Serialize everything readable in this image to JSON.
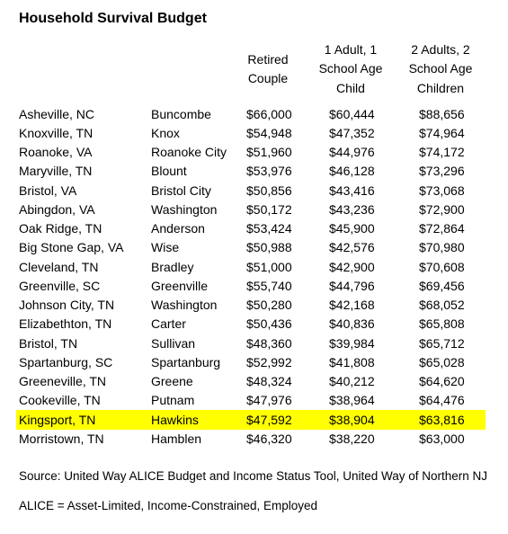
{
  "header": {
    "title": "Household Survival Budget"
  },
  "table": {
    "columns": [
      "",
      "",
      "Retired Couple",
      "1 Adult, 1 School Age Child",
      "2 Adults, 2 School Age Children"
    ],
    "rows": [
      [
        "Asheville, NC",
        "Buncombe",
        "$66,000",
        "$60,444",
        "$88,656"
      ],
      [
        "Knoxville, TN",
        "Knox",
        "$54,948",
        "$47,352",
        "$74,964"
      ],
      [
        "Roanoke, VA",
        "Roanoke City",
        "$51,960",
        "$44,976",
        "$74,172"
      ],
      [
        "Maryville, TN",
        "Blount",
        "$53,976",
        "$46,128",
        "$73,296"
      ],
      [
        "Bristol, VA",
        "Bristol City",
        "$50,856",
        "$43,416",
        "$73,068"
      ],
      [
        "Abingdon, VA",
        "Washington",
        "$50,172",
        "$43,236",
        "$72,900"
      ],
      [
        "Oak Ridge, TN",
        "Anderson",
        "$53,424",
        "$45,900",
        "$72,864"
      ],
      [
        "Big Stone Gap, VA",
        "Wise",
        "$50,988",
        "$42,576",
        "$70,980"
      ],
      [
        "Cleveland, TN",
        "Bradley",
        "$51,000",
        "$42,900",
        "$70,608"
      ],
      [
        "Greenville, SC",
        "Greenville",
        "$55,740",
        "$44,796",
        "$69,456"
      ],
      [
        "Johnson City, TN",
        "Washington",
        "$50,280",
        "$42,168",
        "$68,052"
      ],
      [
        "Elizabethton, TN",
        "Carter",
        "$50,436",
        "$40,836",
        "$65,808"
      ],
      [
        "Bristol, TN",
        "Sullivan",
        "$48,360",
        "$39,984",
        "$65,712"
      ],
      [
        "Spartanburg, SC",
        "Spartanburg",
        "$52,992",
        "$41,808",
        "$65,028"
      ],
      [
        "Greeneville, TN",
        "Greene",
        "$48,324",
        "$40,212",
        "$64,620"
      ],
      [
        "Cookeville, TN",
        "Putnam",
        "$47,976",
        "$38,964",
        "$64,476"
      ],
      [
        "Kingsport, TN",
        "Hawkins",
        "$47,592",
        "$38,904",
        "$63,816"
      ],
      [
        "Morristown, TN",
        "Hamblen",
        "$46,320",
        "$38,220",
        "$63,000"
      ]
    ],
    "highlight_row": 16,
    "highlight_color": "#ffff00"
  },
  "footnotes": [
    "Source: United Way ALICE Budget and Income Status Tool, United Way of Northern NJ",
    "ALICE = Asset-Limited, Income-Constrained, Employed"
  ]
}
